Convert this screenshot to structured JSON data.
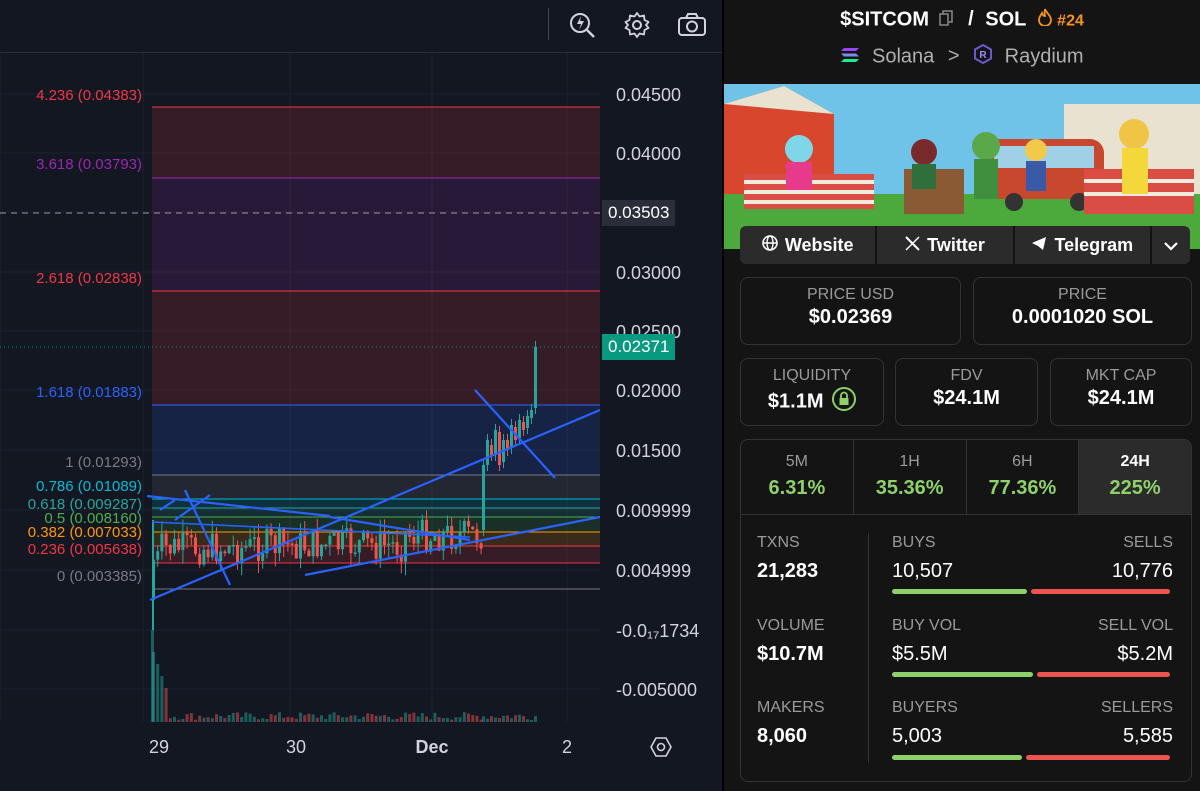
{
  "chart": {
    "price_labels": [
      "0.04500",
      "0.04000",
      "0.03000",
      "0.02500",
      "0.02000",
      "0.01500",
      "0.009999",
      "0.004999",
      "-0.0₁₇1734",
      "-0.005000"
    ],
    "current_price_tag": "0.02371",
    "crosshair_price_tag": "0.03503",
    "time_labels": [
      "29",
      "30",
      "Dec",
      "2"
    ],
    "fib_levels": [
      {
        "label": "4.236 (0.04383)",
        "color": "#f23645"
      },
      {
        "label": "3.618 (0.03793)",
        "color": "#9c27b0"
      },
      {
        "label": "2.618 (0.02838)",
        "color": "#f23645"
      },
      {
        "label": "1.618 (0.01883)",
        "color": "#2962ff"
      },
      {
        "label": "1 (0.01293)",
        "color": "#787b86"
      },
      {
        "label": "0.786 (0.01089)",
        "color": "#00bcd4"
      },
      {
        "label": "0.618 (0.009287)",
        "color": "#26a69a"
      },
      {
        "label": "0.5 (0.008160)",
        "color": "#4caf50"
      },
      {
        "label": "0.382 (0.007033)",
        "color": "#ff9800"
      },
      {
        "label": "0.236 (0.005638)",
        "color": "#f23645"
      },
      {
        "label": "0 (0.003385)",
        "color": "#787b86"
      }
    ],
    "colors": {
      "up": "#26a69a",
      "down": "#ef5350",
      "trendline": "#2962ff",
      "tag_current": "#089981",
      "tag_crosshair": "#2a2e39"
    }
  },
  "toolbar": {
    "icons": [
      "lightning-magnify-icon",
      "gear-icon",
      "camera-icon"
    ]
  },
  "pair": {
    "base": "$SITCOM",
    "separator": "/",
    "quote": "SOL",
    "rank": "#24",
    "chain": "Solana",
    "chevron": ">",
    "dex": "Raydium"
  },
  "links": {
    "website": "Website",
    "twitter": "Twitter",
    "telegram": "Telegram"
  },
  "price": {
    "usd_label": "PRICE USD",
    "usd_value": "$0.02369",
    "native_label": "PRICE",
    "native_value": "0.0001020 SOL"
  },
  "metrics": {
    "liquidity_label": "LIQUIDITY",
    "liquidity_value": "$1.1M",
    "fdv_label": "FDV",
    "fdv_value": "$24.1M",
    "mcap_label": "MKT CAP",
    "mcap_value": "$24.1M"
  },
  "periods": [
    {
      "label": "5M",
      "value": "6.31%"
    },
    {
      "label": "1H",
      "value": "35.36%"
    },
    {
      "label": "6H",
      "value": "77.36%"
    },
    {
      "label": "24H",
      "value": "225%",
      "active": true
    }
  ],
  "stats": {
    "txns_label": "TXNS",
    "txns_value": "21,283",
    "buys_label": "BUYS",
    "buys_value": "10,507",
    "sells_label": "SELLS",
    "sells_value": "10,776",
    "buys_ratio": 0.494,
    "volume_label": "VOLUME",
    "volume_value": "$10.7M",
    "buy_vol_label": "BUY VOL",
    "buy_vol_value": "$5.5M",
    "sell_vol_label": "SELL VOL",
    "sell_vol_value": "$5.2M",
    "buy_vol_ratio": 0.514,
    "makers_label": "MAKERS",
    "makers_value": "8,060",
    "buyers_label": "BUYERS",
    "buyers_value": "5,003",
    "sellers_label": "SELLERS",
    "sellers_value": "5,585",
    "buyers_ratio": 0.473
  }
}
